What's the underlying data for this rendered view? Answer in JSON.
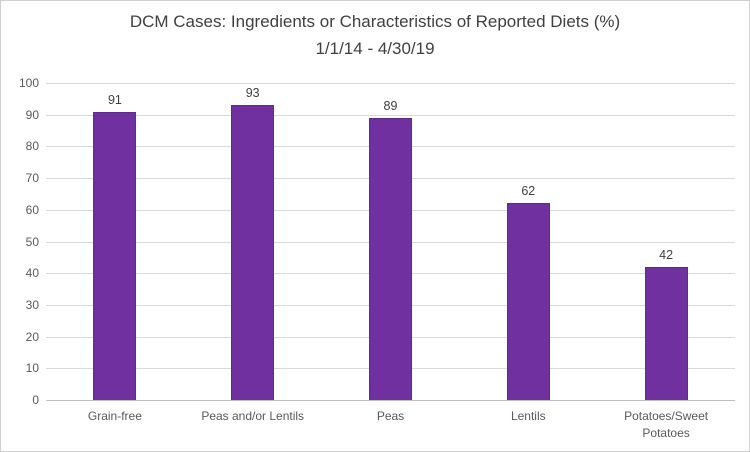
{
  "chart_data": {
    "type": "bar",
    "title": "DCM Cases: Ingredients or Characteristics of Reported Diets (%)",
    "subtitle": "1/1/14 - 4/30/19",
    "categories": [
      "Grain-free",
      "Peas and/or Lentils",
      "Peas",
      "Lentils",
      "Potatoes/Sweet Potatoes"
    ],
    "values": [
      91,
      93,
      89,
      62,
      42
    ],
    "data_labels": [
      "91",
      "93",
      "89",
      "62",
      "42"
    ],
    "ylabel": "",
    "xlabel": "",
    "ylim": [
      0,
      100
    ],
    "ytick_step": 10,
    "ytick_labels": [
      "0",
      "10",
      "20",
      "30",
      "40",
      "50",
      "60",
      "70",
      "80",
      "90",
      "100"
    ],
    "grid": true,
    "legend": "none",
    "colors": {
      "bar_fill": "#7030a0",
      "bar_border": "#5b2d86",
      "gridline": "#d9d9d9",
      "axis_line": "#bfbfbf",
      "title_text": "#404040",
      "tick_text": "#595959",
      "background": "#ffffff",
      "frame_border": "#cfcfcf"
    }
  }
}
